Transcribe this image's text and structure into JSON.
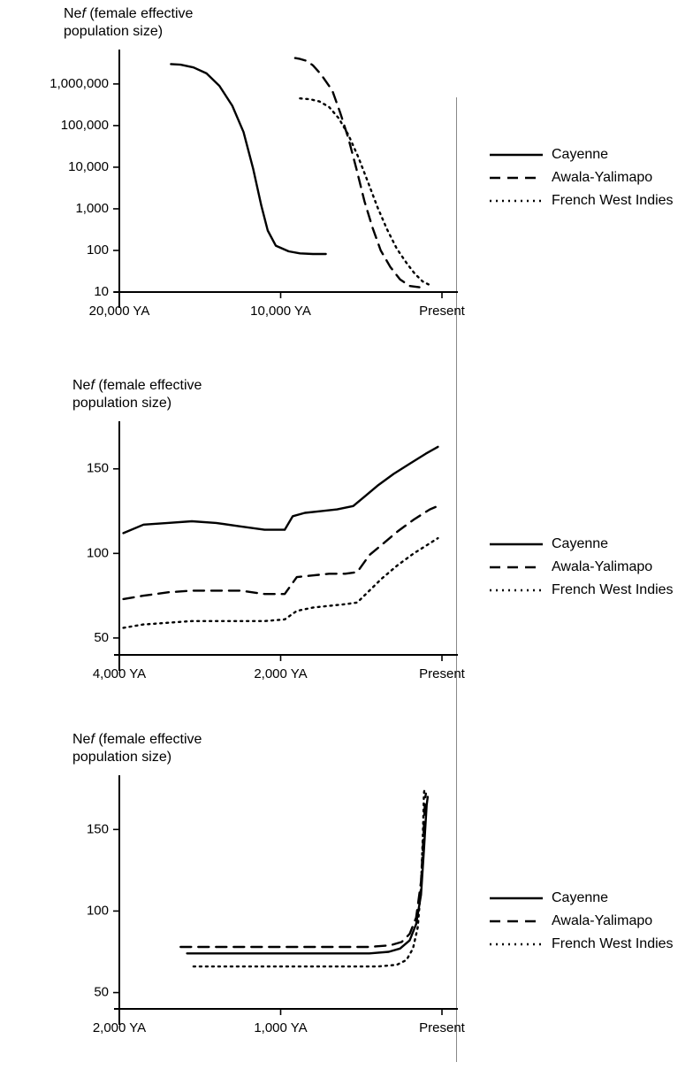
{
  "global": {
    "background_color": "#ffffff",
    "text_color": "#000000",
    "line_color": "#000000",
    "guide_line_color": "#888888",
    "font_family": "Arial, Helvetica, sans-serif",
    "axis_title_fontsize": 16,
    "tick_fontsize": 15,
    "legend_fontsize": 16,
    "y_title_prefix": "Ne",
    "y_title_italic": "f",
    "y_title_suffix": " (female effective",
    "y_title_line2": "population size)"
  },
  "legend": {
    "items": [
      {
        "key": "cayenne",
        "label": "Cayenne",
        "dash": "solid"
      },
      {
        "key": "awala",
        "label": "Awala-Yalimapo",
        "dash": "long"
      },
      {
        "key": "fwi",
        "label": "French West Indies",
        "dash": "dot"
      }
    ],
    "dash_css": {
      "solid": "none",
      "long": "12 8",
      "dot": "2 5"
    },
    "line_width": 2.4
  },
  "panelA": {
    "type": "line",
    "y_scale": "log",
    "x_domain": [
      20000,
      0
    ],
    "y_domain": [
      10,
      5000000
    ],
    "x_ticks": [
      {
        "value": 20000,
        "label": "20,000 YA"
      },
      {
        "value": 10000,
        "label": "10,000 YA"
      },
      {
        "value": 0,
        "label": "Present"
      }
    ],
    "y_ticks": [
      {
        "value": 10,
        "label": "10"
      },
      {
        "value": 100,
        "label": "100"
      },
      {
        "value": 1000,
        "label": "1,000"
      },
      {
        "value": 10000,
        "label": "10,000"
      },
      {
        "value": 100000,
        "label": "100,000"
      },
      {
        "value": 1000000,
        "label": "1,000,000"
      }
    ],
    "series": {
      "cayenne": [
        [
          16800,
          3000000
        ],
        [
          16200,
          2900000
        ],
        [
          15400,
          2500000
        ],
        [
          14600,
          1800000
        ],
        [
          13800,
          900000
        ],
        [
          13000,
          300000
        ],
        [
          12300,
          70000
        ],
        [
          11700,
          9000
        ],
        [
          11200,
          1200
        ],
        [
          10800,
          300
        ],
        [
          10300,
          130
        ],
        [
          9500,
          95
        ],
        [
          8800,
          85
        ],
        [
          8000,
          82
        ],
        [
          7200,
          82
        ]
      ],
      "awala": [
        [
          9100,
          4200000
        ],
        [
          8800,
          4000000
        ],
        [
          8400,
          3600000
        ],
        [
          8000,
          2800000
        ],
        [
          7500,
          1700000
        ],
        [
          6800,
          700000
        ],
        [
          6300,
          200000
        ],
        [
          5800,
          50000
        ],
        [
          5300,
          9000
        ],
        [
          4800,
          1500
        ],
        [
          4300,
          350
        ],
        [
          3800,
          100
        ],
        [
          3200,
          40
        ],
        [
          2600,
          20
        ],
        [
          2000,
          14
        ],
        [
          1400,
          13
        ]
      ],
      "fwi": [
        [
          8800,
          450000
        ],
        [
          8200,
          430000
        ],
        [
          7600,
          380000
        ],
        [
          7000,
          280000
        ],
        [
          6400,
          150000
        ],
        [
          5800,
          60000
        ],
        [
          5200,
          18000
        ],
        [
          4600,
          4500
        ],
        [
          4000,
          1100
        ],
        [
          3400,
          320
        ],
        [
          2800,
          110
        ],
        [
          2200,
          50
        ],
        [
          1700,
          28
        ],
        [
          1200,
          18
        ],
        [
          800,
          15
        ]
      ]
    },
    "line_width": 2.4
  },
  "panelB": {
    "type": "line",
    "y_scale": "linear",
    "x_domain": [
      4000,
      0
    ],
    "y_domain": [
      40,
      175
    ],
    "x_ticks": [
      {
        "value": 4000,
        "label": "4,000 YA"
      },
      {
        "value": 2000,
        "label": "2,000 YA"
      },
      {
        "value": 0,
        "label": "Present"
      }
    ],
    "y_ticks": [
      {
        "value": 50,
        "label": "50"
      },
      {
        "value": 100,
        "label": "100"
      },
      {
        "value": 150,
        "label": "150"
      }
    ],
    "series": {
      "cayenne": [
        [
          3950,
          112
        ],
        [
          3700,
          117
        ],
        [
          3400,
          118
        ],
        [
          3100,
          119
        ],
        [
          2800,
          118
        ],
        [
          2500,
          116
        ],
        [
          2200,
          114
        ],
        [
          1950,
          114
        ],
        [
          1850,
          122
        ],
        [
          1700,
          124
        ],
        [
          1500,
          125
        ],
        [
          1300,
          126
        ],
        [
          1100,
          128
        ],
        [
          950,
          134
        ],
        [
          800,
          140
        ],
        [
          600,
          147
        ],
        [
          400,
          153
        ],
        [
          200,
          159
        ],
        [
          50,
          163
        ]
      ],
      "awala": [
        [
          3950,
          73
        ],
        [
          3700,
          75
        ],
        [
          3400,
          77
        ],
        [
          3100,
          78
        ],
        [
          2800,
          78
        ],
        [
          2500,
          78
        ],
        [
          2200,
          76
        ],
        [
          1950,
          76
        ],
        [
          1800,
          86
        ],
        [
          1600,
          87
        ],
        [
          1400,
          88
        ],
        [
          1200,
          88
        ],
        [
          1050,
          89
        ],
        [
          900,
          99
        ],
        [
          750,
          105
        ],
        [
          550,
          113
        ],
        [
          350,
          120
        ],
        [
          150,
          126
        ],
        [
          50,
          128
        ]
      ],
      "fwi": [
        [
          3950,
          56
        ],
        [
          3700,
          58
        ],
        [
          3400,
          59
        ],
        [
          3100,
          60
        ],
        [
          2800,
          60
        ],
        [
          2500,
          60
        ],
        [
          2200,
          60
        ],
        [
          1950,
          61
        ],
        [
          1800,
          66
        ],
        [
          1600,
          68
        ],
        [
          1400,
          69
        ],
        [
          1200,
          70
        ],
        [
          1050,
          71
        ],
        [
          900,
          78
        ],
        [
          750,
          85
        ],
        [
          550,
          93
        ],
        [
          350,
          100
        ],
        [
          150,
          106
        ],
        [
          50,
          109
        ]
      ]
    },
    "line_width": 2.4
  },
  "panelC": {
    "type": "line",
    "y_scale": "linear",
    "x_domain": [
      2000,
      0
    ],
    "y_domain": [
      40,
      180
    ],
    "x_ticks": [
      {
        "value": 2000,
        "label": "2,000 YA"
      },
      {
        "value": 1000,
        "label": "1,000 YA"
      },
      {
        "value": 0,
        "label": "Present"
      }
    ],
    "y_ticks": [
      {
        "value": 50,
        "label": "50"
      },
      {
        "value": 100,
        "label": "100"
      },
      {
        "value": 150,
        "label": "150"
      }
    ],
    "series": {
      "cayenne": [
        [
          1580,
          74
        ],
        [
          1400,
          74
        ],
        [
          1200,
          74
        ],
        [
          1000,
          74
        ],
        [
          800,
          74
        ],
        [
          600,
          74
        ],
        [
          450,
          74
        ],
        [
          330,
          75
        ],
        [
          260,
          77
        ],
        [
          200,
          82
        ],
        [
          160,
          92
        ],
        [
          130,
          110
        ],
        [
          110,
          140
        ],
        [
          95,
          165
        ],
        [
          88,
          170
        ]
      ],
      "awala": [
        [
          1620,
          78
        ],
        [
          1400,
          78
        ],
        [
          1200,
          78
        ],
        [
          1000,
          78
        ],
        [
          800,
          78
        ],
        [
          600,
          78
        ],
        [
          450,
          78
        ],
        [
          320,
          79
        ],
        [
          250,
          81
        ],
        [
          200,
          86
        ],
        [
          160,
          96
        ],
        [
          130,
          118
        ],
        [
          115,
          145
        ],
        [
          105,
          168
        ],
        [
          100,
          172
        ]
      ],
      "fwi": [
        [
          1540,
          66
        ],
        [
          1350,
          66
        ],
        [
          1150,
          66
        ],
        [
          950,
          66
        ],
        [
          750,
          66
        ],
        [
          550,
          66
        ],
        [
          400,
          66
        ],
        [
          280,
          67
        ],
        [
          220,
          70
        ],
        [
          180,
          77
        ],
        [
          150,
          90
        ],
        [
          130,
          115
        ],
        [
          118,
          148
        ],
        [
          112,
          172
        ],
        [
          108,
          175
        ]
      ]
    },
    "line_width": 2.4
  }
}
